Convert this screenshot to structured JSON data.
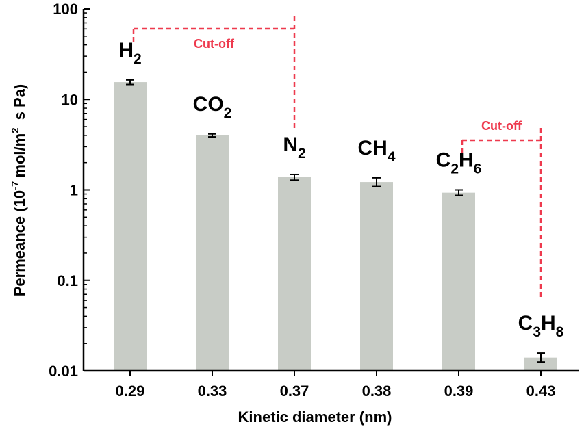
{
  "chart_data": {
    "type": "bar",
    "title": "",
    "xlabel": "Kinetic diameter (nm)",
    "ylabel": {
      "prefix": "Permeance (10",
      "exponent": "-7",
      "middle": "mol/m",
      "exponent2": "2",
      "suffix": " s Pa)"
    },
    "yscale": "log",
    "ylim": [
      0.01,
      100
    ],
    "yticks": [
      "0.01",
      "0.1",
      "1",
      "10",
      "100"
    ],
    "categories": [
      "0.29",
      "0.33",
      "0.37",
      "0.38",
      "0.39",
      "0.43"
    ],
    "values": [
      15.5,
      4.0,
      1.38,
      1.22,
      0.93,
      0.014
    ],
    "error_low": [
      14.6,
      3.85,
      1.28,
      1.09,
      0.87,
      0.0125
    ],
    "error_high": [
      16.4,
      4.15,
      1.48,
      1.36,
      1.0,
      0.0157
    ],
    "bar_labels": [
      [
        {
          "t": "H",
          "sub": false
        },
        {
          "t": "2",
          "sub": true
        }
      ],
      [
        {
          "t": "CO",
          "sub": false
        },
        {
          "t": "2",
          "sub": true
        }
      ],
      [
        {
          "t": "N",
          "sub": false
        },
        {
          "t": "2",
          "sub": true
        }
      ],
      [
        {
          "t": "CH",
          "sub": false
        },
        {
          "t": "4",
          "sub": true
        }
      ],
      [
        {
          "t": "C",
          "sub": false
        },
        {
          "t": "2",
          "sub": true
        },
        {
          "t": "H",
          "sub": false
        },
        {
          "t": "6",
          "sub": true
        }
      ],
      [
        {
          "t": "C",
          "sub": false
        },
        {
          "t": "3",
          "sub": true
        },
        {
          "t": "H",
          "sub": false
        },
        {
          "t": "8",
          "sub": true
        }
      ]
    ],
    "annotations": [
      {
        "text": "Cut-off",
        "from_category": 0,
        "to_category": 2
      },
      {
        "text": "Cut-off",
        "from_category": 4,
        "to_category": 5
      }
    ],
    "colors": {
      "bar": "#c8ccc6",
      "annotation": "#ee3a4e",
      "axis": "#000000"
    },
    "grid": false,
    "legend": "none"
  }
}
